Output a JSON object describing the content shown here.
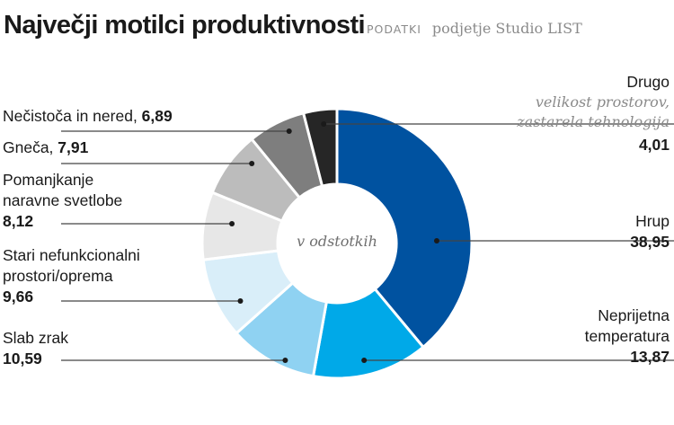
{
  "header": {
    "title": "Največji motilci produktivnosti",
    "source_label": "PODATKI",
    "source_text": "podjetje Studio LIST"
  },
  "center_label": "v odstotkih",
  "chart_data": {
    "type": "pie",
    "title": "Največji motilci produktivnosti",
    "unit": "v odstotkih",
    "slices": [
      {
        "label": "Hrup",
        "value": 38.95,
        "value_text": "38,95",
        "color": "#0052a0"
      },
      {
        "label": "Neprijetna temperatura",
        "value": 13.87,
        "value_text": "13,87",
        "color": "#00a9e8"
      },
      {
        "label": "Slab zrak",
        "value": 10.59,
        "value_text": "10,59",
        "color": "#8fd2f2"
      },
      {
        "label": "Stari nefunkcionalni prostori/oprema",
        "value": 9.66,
        "value_text": "9,66",
        "color": "#d9eef9"
      },
      {
        "label": "Pomanjkanje naravne svetlobe",
        "value": 8.12,
        "value_text": "8,12",
        "color": "#e7e7e7"
      },
      {
        "label": "Gneča",
        "value": 7.91,
        "value_text": "7,91",
        "color": "#bcbcbc"
      },
      {
        "label": "Nečistoča in nered",
        "value": 6.89,
        "value_text": "6,89",
        "color": "#7e7e7e"
      },
      {
        "label": "Drugo",
        "value": 4.01,
        "value_text": "4,01",
        "color": "#262626",
        "description": "velikost prostorov, zastarela tehnologija"
      }
    ]
  },
  "labels": {
    "drugo": {
      "name": "Drugo",
      "desc1": "velikost prostorov,",
      "desc2": "zastarela tehnologija",
      "value": "4,01"
    },
    "hrup": {
      "name": "Hrup",
      "value": "38,95"
    },
    "temperatura": {
      "name1": "Neprijetna",
      "name2": "temperatura",
      "value": "13,87"
    },
    "necistoca": {
      "name": "Nečistoča in nered, ",
      "value": "6,89"
    },
    "gneca": {
      "name": "Gneča, ",
      "value": "7,91"
    },
    "svetloba": {
      "name1": "Pomanjkanje",
      "name2": "naravne svetlobe",
      "value": "8,12"
    },
    "prostori": {
      "name1": "Stari nefunkcionalni",
      "name2": "prostori/oprema",
      "value": "9,66"
    },
    "zrak": {
      "name": "Slab zrak",
      "value": "10,59"
    }
  }
}
